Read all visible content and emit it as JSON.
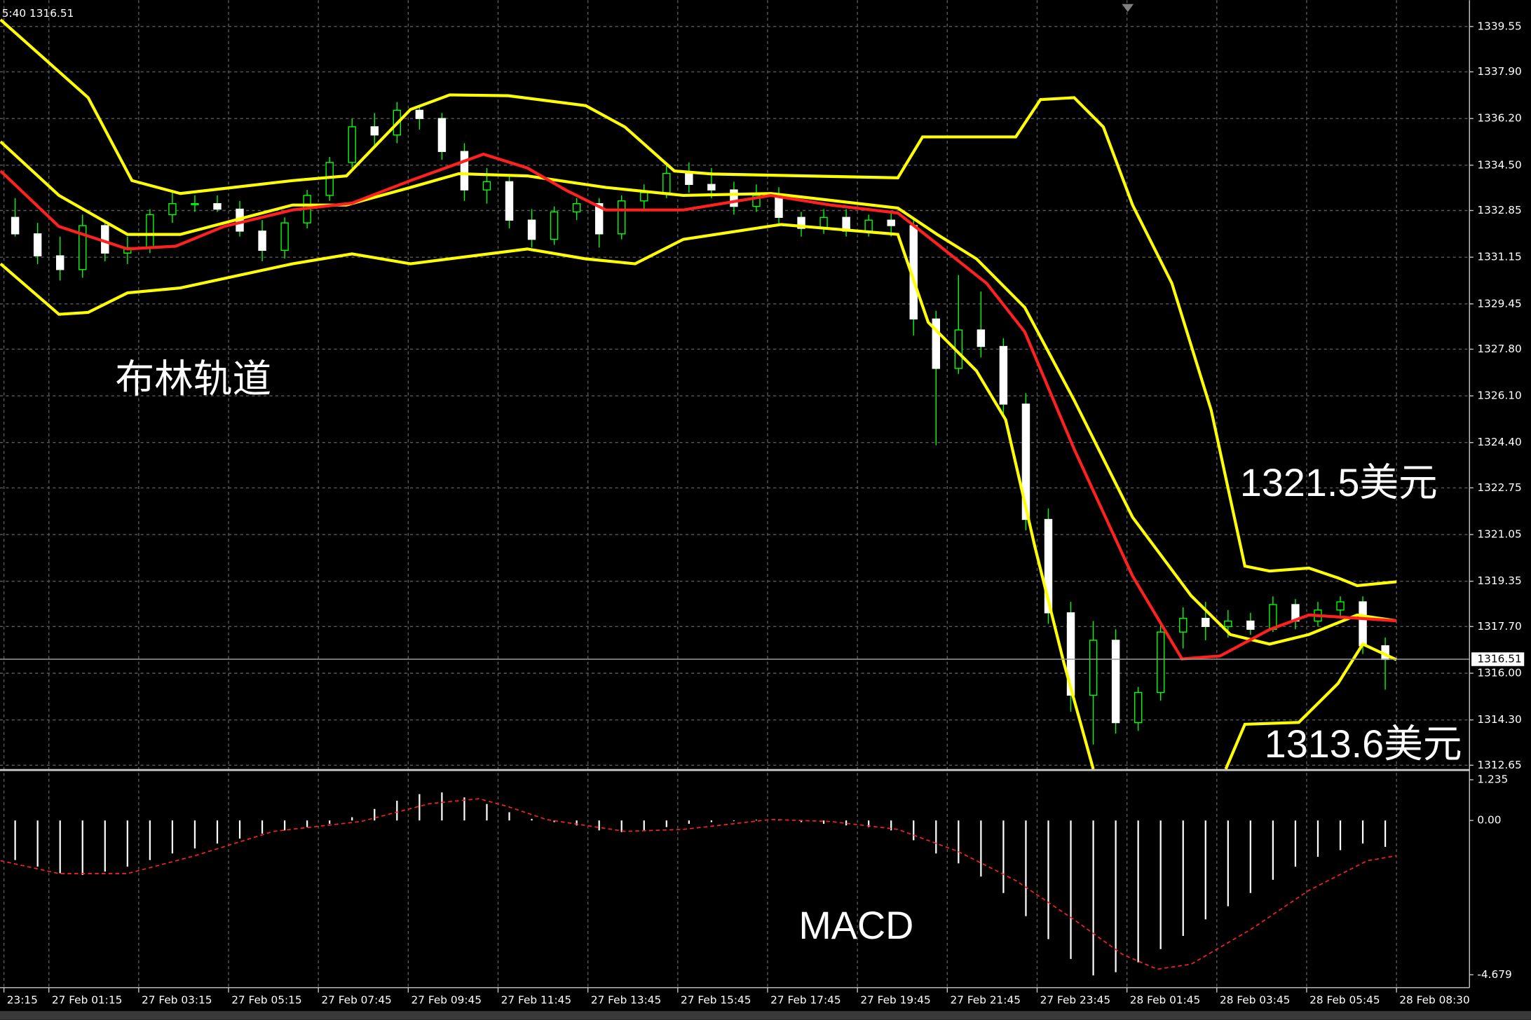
{
  "chart_data": [
    {
      "type": "candlestick",
      "status_text": "5:40 1316.51",
      "annotations": [
        "布林轨道",
        "1321.5美元",
        "1313.6美元"
      ],
      "xlim": [
        -1.35,
        129.5
      ],
      "ylim": [
        1312.51,
        1340.51
      ],
      "yticks": [
        1339.55,
        {
          "value": 1337.9,
          "label": "1337.90"
        },
        {
          "value": 1336.2,
          "label": "1336.20"
        },
        {
          "value": 1334.5,
          "label": "1334.50"
        },
        1332.85,
        1331.15,
        1329.45,
        {
          "value": 1327.8,
          "label": "1327.80"
        },
        {
          "value": 1326.1,
          "label": "1326.10"
        },
        {
          "value": 1324.4,
          "label": "1324.40"
        },
        1322.75,
        1321.05,
        1319.35,
        {
          "value": 1317.7,
          "label": "1317.70"
        },
        {
          "value": 1316,
          "label": "1316.00"
        },
        {
          "value": 1314.3,
          "label": "1314.30"
        },
        1312.65
      ],
      "grid": true,
      "current_price": 1316.51,
      "up_color": "#00ff00",
      "down_color": "#ffffff",
      "wick_color": "#00ff00",
      "x": [
        0,
        2,
        4,
        6,
        8,
        10,
        12,
        14,
        16,
        18,
        20,
        22,
        24,
        26,
        28,
        30,
        32,
        34,
        36,
        38,
        40,
        42,
        44,
        46,
        48,
        50,
        52,
        54,
        56,
        58,
        60,
        62,
        64,
        66,
        68,
        70,
        72,
        74,
        76,
        78,
        80,
        82,
        84,
        86,
        88,
        90,
        92,
        94,
        96,
        98,
        100,
        102,
        104,
        106,
        108,
        110,
        112,
        114,
        116,
        118,
        120,
        122
      ],
      "open": [
        1332.6,
        1332.0,
        1331.2,
        1330.7,
        1332.3,
        1331.3,
        1331.5,
        1332.7,
        1333.1,
        1333.1,
        1332.9,
        1332.1,
        1331.4,
        1332.4,
        1333.4,
        1334.6,
        1335.9,
        1335.6,
        1336.5,
        1336.2,
        1335.0,
        1333.6,
        1333.9,
        1332.5,
        1331.8,
        1332.8,
        1333.1,
        1332.0,
        1333.2,
        1333.5,
        1334.2,
        1333.8,
        1333.6,
        1333.0,
        1333.4,
        1332.6,
        1332.2,
        1332.6,
        1332.1,
        1332.5,
        1332.3,
        1328.9,
        1327.1,
        1328.5,
        1327.9,
        1325.8,
        1321.6,
        1318.2,
        1315.2,
        1317.2,
        1314.2,
        1315.3,
        1317.5,
        1318.0,
        1317.7,
        1317.9,
        1317.6,
        1318.5,
        1317.9,
        1318.3,
        1318.6,
        1317.0
      ],
      "high": [
        1333.3,
        1332.4,
        1331.9,
        1332.7,
        1332.5,
        1331.9,
        1332.9,
        1333.6,
        1333.4,
        1333.4,
        1333.2,
        1332.5,
        1332.6,
        1333.6,
        1334.8,
        1336.2,
        1336.4,
        1336.8,
        1336.7,
        1336.4,
        1335.3,
        1334.4,
        1334.1,
        1332.9,
        1333.0,
        1333.3,
        1333.3,
        1333.4,
        1333.8,
        1334.5,
        1334.6,
        1334.4,
        1333.9,
        1333.8,
        1333.7,
        1332.8,
        1332.9,
        1332.9,
        1332.7,
        1332.8,
        1332.5,
        1329.2,
        1330.5,
        1329.9,
        1328.2,
        1326.2,
        1322.0,
        1318.6,
        1317.9,
        1317.6,
        1315.5,
        1317.8,
        1318.4,
        1318.6,
        1318.3,
        1318.2,
        1318.8,
        1318.7,
        1318.6,
        1318.8,
        1318.8,
        1317.3
      ],
      "low": [
        1331.9,
        1330.9,
        1330.3,
        1330.4,
        1331.0,
        1330.9,
        1331.3,
        1332.4,
        1332.8,
        1332.8,
        1331.9,
        1331.0,
        1331.1,
        1332.2,
        1333.2,
        1334.4,
        1335.2,
        1335.3,
        1335.8,
        1334.7,
        1333.2,
        1333.1,
        1332.2,
        1331.5,
        1331.6,
        1332.5,
        1331.5,
        1331.8,
        1332.9,
        1333.3,
        1333.5,
        1333.3,
        1332.7,
        1332.8,
        1332.3,
        1331.9,
        1332.0,
        1331.9,
        1331.9,
        1331.9,
        1328.3,
        1324.3,
        1326.9,
        1327.5,
        1325.4,
        1321.2,
        1317.8,
        1314.6,
        1313.4,
        1313.8,
        1313.9,
        1315.0,
        1316.9,
        1317.2,
        1317.3,
        1317.4,
        1317.5,
        1317.6,
        1317.7,
        1318.0,
        1316.7,
        1315.4
      ],
      "close": [
        1332.0,
        1331.2,
        1330.7,
        1332.3,
        1331.3,
        1331.5,
        1332.7,
        1333.1,
        1333.1,
        1332.9,
        1332.1,
        1331.4,
        1332.4,
        1333.4,
        1334.6,
        1335.9,
        1335.6,
        1336.5,
        1336.2,
        1335.0,
        1333.6,
        1333.9,
        1332.5,
        1331.8,
        1332.8,
        1333.1,
        1332.0,
        1333.2,
        1333.5,
        1334.2,
        1333.8,
        1333.6,
        1333.0,
        1333.4,
        1332.6,
        1332.2,
        1332.6,
        1332.1,
        1332.5,
        1332.3,
        1328.9,
        1327.1,
        1328.5,
        1327.9,
        1325.8,
        1321.6,
        1318.2,
        1315.2,
        1317.2,
        1314.2,
        1315.3,
        1317.5,
        1318.0,
        1317.7,
        1317.9,
        1317.6,
        1318.5,
        1317.9,
        1318.3,
        1318.6,
        1317.0,
        1316.5
      ],
      "overlays": [
        {
          "color": "#ffff00",
          "x": [
            -1.3,
            6.5,
            10.4,
            14.7,
            24.7,
            29.5,
            35.2,
            38.7,
            43.9,
            50.8,
            54.3,
            58.7,
            62.1,
            78.6,
            80.8,
            89.1,
            91.3,
            94.3,
            96.9,
            99.5,
            103.0,
            106.5,
            109.5,
            111.7,
            115.2,
            117.8,
            119.5,
            123.0
          ],
          "values": [
            1339.8,
            1336.96,
            1333.94,
            1333.47,
            1333.94,
            1334.11,
            1336.53,
            1337.06,
            1337.03,
            1336.67,
            1335.89,
            1334.29,
            1334.18,
            1334.04,
            1335.53,
            1335.53,
            1336.89,
            1336.96,
            1335.89,
            1333.05,
            1330.2,
            1325.58,
            1319.9,
            1319.72,
            1319.83,
            1319.47,
            1319.19,
            1319.33
          ]
        },
        {
          "color": "#ffff00",
          "x": [
            -1.3,
            3.9,
            10.0,
            14.7,
            24.7,
            29.5,
            35.2,
            39.5,
            45.6,
            52.6,
            59.5,
            67.3,
            78.6,
            82.1,
            85.6,
            89.9,
            94.3,
            99.5,
            104.7,
            108.2,
            111.7,
            115.2,
            119.5,
            123.0
          ],
          "values": [
            1335.36,
            1333.4,
            1331.98,
            1331.98,
            1333.05,
            1333.05,
            1333.69,
            1334.19,
            1334.11,
            1333.69,
            1333.4,
            1333.47,
            1332.94,
            1331.98,
            1331.09,
            1329.32,
            1325.94,
            1321.68,
            1318.83,
            1317.41,
            1317.06,
            1317.41,
            1318.12,
            1317.91
          ]
        },
        {
          "color": "#ffff00",
          "x": [
            -1.3,
            3.9,
            6.5,
            10.0,
            14.7,
            24.7,
            30.0,
            35.2,
            45.6,
            50.8,
            55.2,
            59.5,
            68.2,
            78.6,
            81.3,
            85.6,
            88.2,
            90.8,
            93.4,
            96.0,
            null,
            107.8,
            109.5,
            114.3,
            117.8,
            120.0,
            123.0
          ],
          "values": [
            1330.91,
            1329.07,
            1329.14,
            1329.85,
            1330.03,
            1330.91,
            1331.27,
            1330.91,
            1331.45,
            1331.09,
            1330.91,
            1331.8,
            1332.34,
            1331.98,
            1328.78,
            1327.01,
            1325.23,
            1320.61,
            1316.35,
            1312.51,
            null,
            1312.51,
            1314.14,
            1314.21,
            1315.63,
            1317.06,
            1316.49
          ]
        },
        {
          "color": "#ff2020",
          "x": [
            -1.3,
            3.9,
            10.0,
            14.3,
            18.6,
            24.7,
            30.0,
            35.2,
            41.7,
            45.6,
            49.1,
            52.6,
            59.5,
            67.3,
            72.6,
            78.6,
            82.1,
            86.5,
            89.9,
            94.3,
            99.5,
            103.9,
            107.3,
            111.7,
            115.2,
            123.0
          ],
          "values": [
            1334.29,
            1332.27,
            1331.45,
            1331.55,
            1332.27,
            1332.87,
            1333.12,
            1333.94,
            1334.9,
            1334.4,
            1333.58,
            1332.87,
            1332.87,
            1333.4,
            1333.05,
            1332.76,
            1331.63,
            1330.2,
            1328.43,
            1324.16,
            1319.54,
            1316.52,
            1316.63,
            1317.59,
            1318.12,
            1317.91
          ]
        }
      ]
    },
    {
      "type": "macd",
      "label": "MACD",
      "xlim": [
        -1.35,
        129.5
      ],
      "ylim": [
        -5.01,
        1.5
      ],
      "yticks": [
        1.235,
        {
          "value": 0,
          "label": "0.00"
        },
        -4.679
      ],
      "xticks": [
        {
          "value": -1,
          "label": "23:15"
        },
        {
          "value": 3,
          "label": "27 Feb 01:15"
        },
        {
          "value": 11,
          "label": "27 Feb 03:15"
        },
        {
          "value": 19,
          "label": "27 Feb 05:15"
        },
        {
          "value": 27,
          "label": "27 Feb 07:45"
        },
        {
          "value": 35,
          "label": "27 Feb 09:45"
        },
        {
          "value": 43,
          "label": "27 Feb 11:45"
        },
        {
          "value": 51,
          "label": "27 Feb 13:45"
        },
        {
          "value": 59,
          "label": "27 Feb 15:45"
        },
        {
          "value": 67,
          "label": "27 Feb 17:45"
        },
        {
          "value": 75,
          "label": "27 Feb 19:45"
        },
        {
          "value": 83,
          "label": "27 Feb 21:45"
        },
        {
          "value": 91,
          "label": "27 Feb 23:45"
        },
        {
          "value": 99,
          "label": "28 Feb 01:45"
        },
        {
          "value": 107,
          "label": "28 Feb 03:45"
        },
        {
          "value": 115,
          "label": "28 Feb 05:45"
        },
        {
          "value": 123,
          "label": "28 Feb 08:30"
        }
      ],
      "grid": true,
      "histogram": {
        "color": "#ffffff",
        "x": [
          0,
          2,
          4,
          6,
          8,
          10,
          12,
          14,
          16,
          18,
          20,
          22,
          24,
          26,
          28,
          30,
          32,
          34,
          36,
          38,
          40,
          42,
          44,
          46,
          48,
          50,
          52,
          54,
          56,
          58,
          60,
          62,
          64,
          66,
          68,
          70,
          72,
          74,
          76,
          78,
          80,
          82,
          84,
          86,
          88,
          90,
          92,
          94,
          96,
          98,
          100,
          102,
          104,
          106,
          108,
          110,
          112,
          114,
          116,
          118,
          120,
          122
        ],
        "values": [
          -1.2,
          -1.4,
          -1.6,
          -1.65,
          -1.55,
          -1.4,
          -1.2,
          -1.0,
          -0.85,
          -0.7,
          -0.55,
          -0.4,
          -0.3,
          -0.2,
          -0.1,
          0.1,
          0.35,
          0.6,
          0.8,
          0.85,
          0.7,
          0.5,
          0.25,
          0.05,
          -0.05,
          -0.15,
          -0.3,
          -0.35,
          -0.3,
          -0.2,
          -0.1,
          -0.05,
          -0.02,
          0.02,
          0.03,
          -0.05,
          -0.1,
          -0.15,
          -0.2,
          -0.3,
          -0.6,
          -1.0,
          -1.3,
          -1.7,
          -2.2,
          -2.9,
          -3.6,
          -4.2,
          -4.7,
          -4.6,
          -4.3,
          -3.9,
          -3.5,
          -3.0,
          -2.6,
          -2.2,
          -1.8,
          -1.4,
          -1.1,
          -0.9,
          -0.7,
          -0.8
        ]
      },
      "signal": {
        "color": "#ff2020",
        "x": [
          -1.3,
          3.9,
          10.0,
          16.0,
          23.0,
          30.8,
          36.9,
          41.3,
          43.9,
          47.3,
          54.3,
          59.5,
          67.3,
          72.6,
          78.6,
          83.9,
          89.1,
          94.3,
          98.6,
          101.7,
          104.7,
          110.0,
          115.2,
          120.4,
          123.0
        ],
        "values": [
          -1.22,
          -1.61,
          -1.61,
          -1.07,
          -0.33,
          -0.03,
          0.51,
          0.66,
          0.42,
          0.03,
          -0.33,
          -0.27,
          0.03,
          -0.03,
          -0.27,
          -0.93,
          -1.82,
          -3.01,
          -4.06,
          -4.51,
          -4.36,
          -3.31,
          -2.12,
          -1.22,
          -1.07
        ]
      }
    }
  ]
}
